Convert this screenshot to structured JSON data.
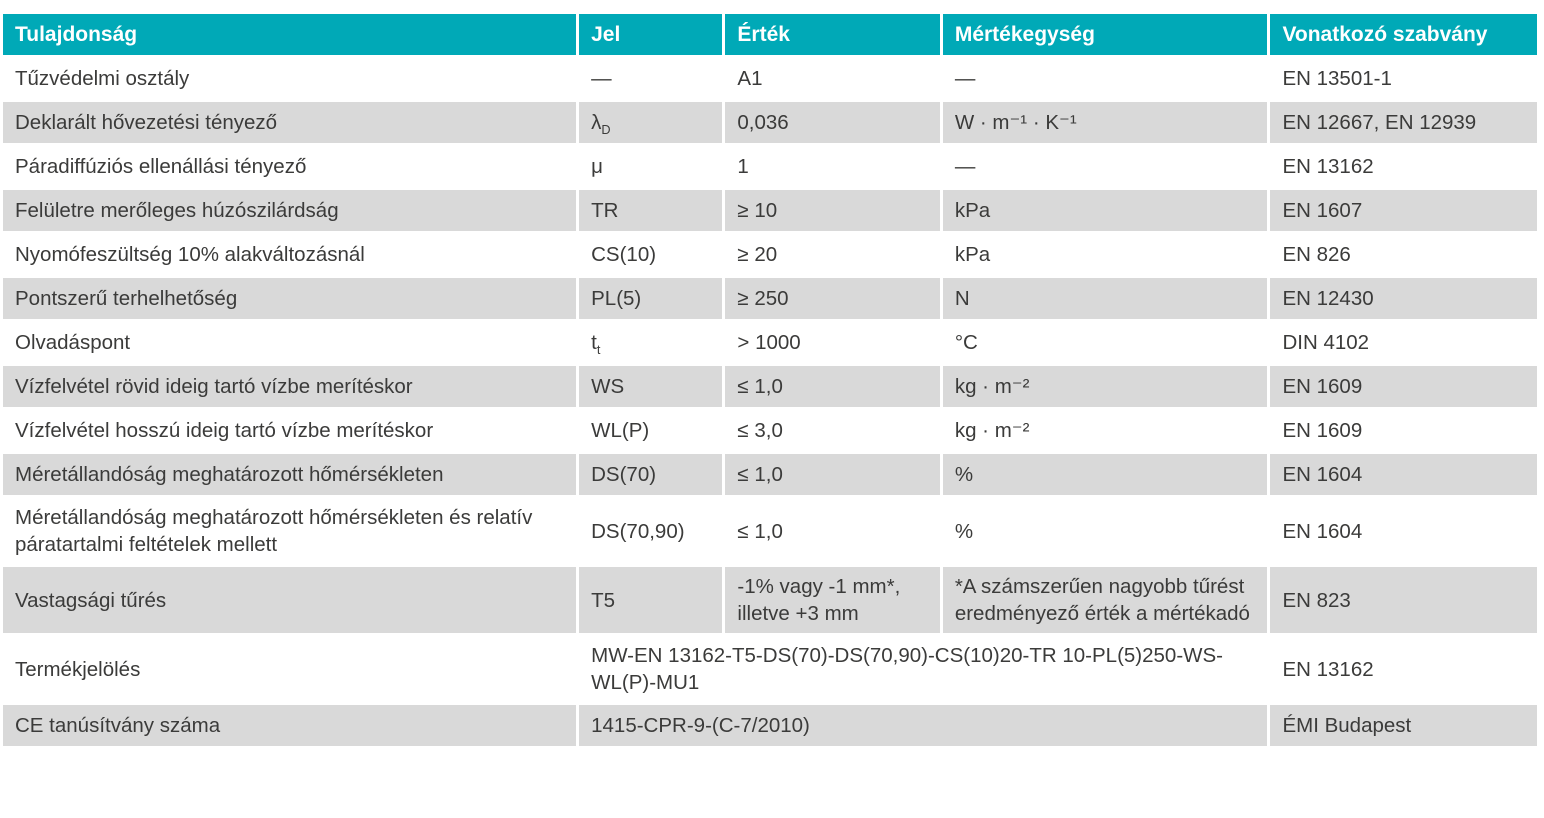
{
  "table": {
    "headers": {
      "property": "Tulajdonság",
      "symbol": "Jel",
      "value": "Érték",
      "unit": "Mértékegység",
      "standard": "Vonatkozó szabvány"
    },
    "accent_color": "#00a9b7",
    "stripe_color": "#d9d9d9",
    "rows": [
      {
        "property": "Tűzvédelmi osztály",
        "symbol": "—",
        "symbol_sub": "",
        "value": "A1",
        "unit": "—",
        "standard": "EN 13501-1"
      },
      {
        "property": "Deklarált hővezetési tényező",
        "symbol": "λ",
        "symbol_sub": "D",
        "value": "0,036",
        "unit": "W · m⁻¹ · K⁻¹",
        "standard": "EN 12667, EN 12939"
      },
      {
        "property": "Páradiffúziós ellenállási tényező",
        "symbol": "μ",
        "symbol_sub": "",
        "value": "1",
        "unit": "—",
        "standard": "EN 13162"
      },
      {
        "property": "Felületre merőleges húzószilárdság",
        "symbol": "TR",
        "symbol_sub": "",
        "value": "≥ 10",
        "unit": "kPa",
        "standard": "EN 1607"
      },
      {
        "property": "Nyomófeszültség 10% alakváltozásnál",
        "symbol": "CS(10)",
        "symbol_sub": "",
        "value": "≥ 20",
        "unit": "kPa",
        "standard": "EN 826"
      },
      {
        "property": "Pontszerű terhelhetőség",
        "symbol": "PL(5)",
        "symbol_sub": "",
        "value": "≥ 250",
        "unit": "N",
        "standard": "EN 12430"
      },
      {
        "property": "Olvadáspont",
        "symbol": "t",
        "symbol_sub": "t",
        "value": "> 1000",
        "unit": "°C",
        "standard": "DIN 4102"
      },
      {
        "property": "Vízfelvétel rövid ideig tartó vízbe merítéskor",
        "symbol": "WS",
        "symbol_sub": "",
        "value": "≤ 1,0",
        "unit": "kg · m⁻²",
        "standard": "EN 1609"
      },
      {
        "property": "Vízfelvétel hosszú ideig tartó vízbe merítéskor",
        "symbol": "WL(P)",
        "symbol_sub": "",
        "value": "≤ 3,0",
        "unit": "kg · m⁻²",
        "standard": "EN 1609"
      },
      {
        "property": "Méretállandóság meghatározott hőmérsékleten",
        "symbol": "DS(70)",
        "symbol_sub": "",
        "value": "≤ 1,0",
        "unit": "%",
        "standard": "EN 1604"
      },
      {
        "property": "Méretállandóság meghatározott hőmérsékleten és relatív páratartalmi feltételek mellett",
        "symbol": "DS(70,90)",
        "symbol_sub": "",
        "value": "≤ 1,0",
        "unit": "%",
        "standard": "EN 1604"
      },
      {
        "property": "Vastagsági tűrés",
        "symbol": "T5",
        "symbol_sub": "",
        "value": "-1% vagy -1 mm*, illetve +3 mm",
        "unit": "*A számszerűen nagyobb tűrést eredményező érték a mértékadó",
        "standard": "EN 823"
      },
      {
        "property": "Termékjelölés",
        "value_span": "MW-EN 13162-T5-DS(70)-DS(70,90)-CS(10)20-TR 10-PL(5)250-WS-WL(P)-MU1",
        "standard": "EN 13162"
      },
      {
        "property": "CE tanúsítvány száma",
        "value_span": "1415-CPR-9-(C-7/2010)",
        "standard": "ÉMI Budapest"
      }
    ]
  }
}
